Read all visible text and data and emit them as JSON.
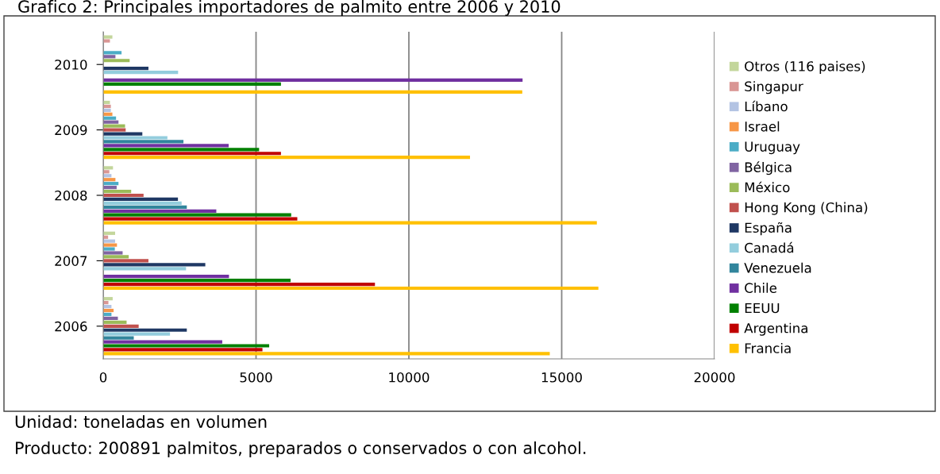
{
  "chart_data": {
    "type": "bar",
    "orientation": "horizontal",
    "title": "Grafico 2: Principales importadores de palmito entre 2006 y 2010",
    "annotations": [
      "Unidad: toneladas en volumen",
      "Producto: 200891 palmitos, preparados o conservados o con alcohol."
    ],
    "categories": [
      "2010",
      "2009",
      "2008",
      "2007",
      "2006"
    ],
    "series": [
      {
        "name": "Otros (116 paises)",
        "color": "#c3d69b",
        "values": [
          300,
          220,
          320,
          390,
          310
        ]
      },
      {
        "name": "Singapur",
        "color": "#d99694",
        "values": [
          220,
          250,
          200,
          160,
          170
        ]
      },
      {
        "name": "Líbano",
        "color": "#b3c3e3",
        "values": [
          null,
          250,
          270,
          390,
          270
        ]
      },
      {
        "name": "Israel",
        "color": "#f79646",
        "values": [
          null,
          300,
          400,
          450,
          340
        ]
      },
      {
        "name": "Uruguay",
        "color": "#4bacc6",
        "values": [
          600,
          420,
          500,
          380,
          270
        ]
      },
      {
        "name": "Bélgica",
        "color": "#8064a2",
        "values": [
          400,
          500,
          440,
          635,
          480
        ]
      },
      {
        "name": "México",
        "color": "#9bbb59",
        "values": [
          865,
          715,
          915,
          835,
          765
        ]
      },
      {
        "name": "Hong Kong (China)",
        "color": "#c0504d",
        "values": [
          null,
          735,
          1320,
          1480,
          1160
        ]
      },
      {
        "name": "España",
        "color": "#1f3864",
        "values": [
          1480,
          1280,
          2445,
          3340,
          2735
        ]
      },
      {
        "name": "Canadá",
        "color": "#93cddd",
        "values": [
          2450,
          2100,
          2565,
          2710,
          2185
        ]
      },
      {
        "name": "Venezuela",
        "color": "#31859c",
        "values": [
          null,
          2625,
          2735,
          null,
          1000
        ]
      },
      {
        "name": "Chile",
        "color": "#7030a0",
        "values": [
          13720,
          4105,
          3700,
          4115,
          3895
        ]
      },
      {
        "name": "EEUU",
        "color": "#008000",
        "values": [
          5815,
          5100,
          6150,
          6130,
          5430
        ]
      },
      {
        "name": "Argentina",
        "color": "#c00000",
        "values": [
          null,
          5815,
          6350,
          8890,
          5210
        ]
      },
      {
        "name": "Francia",
        "color": "#ffc000",
        "values": [
          13710,
          12000,
          16150,
          16200,
          14610
        ]
      }
    ],
    "xlim": [
      0,
      20000
    ],
    "xticks": [
      0,
      5000,
      10000,
      15000,
      20000
    ],
    "grid": "x",
    "legend": "right"
  }
}
